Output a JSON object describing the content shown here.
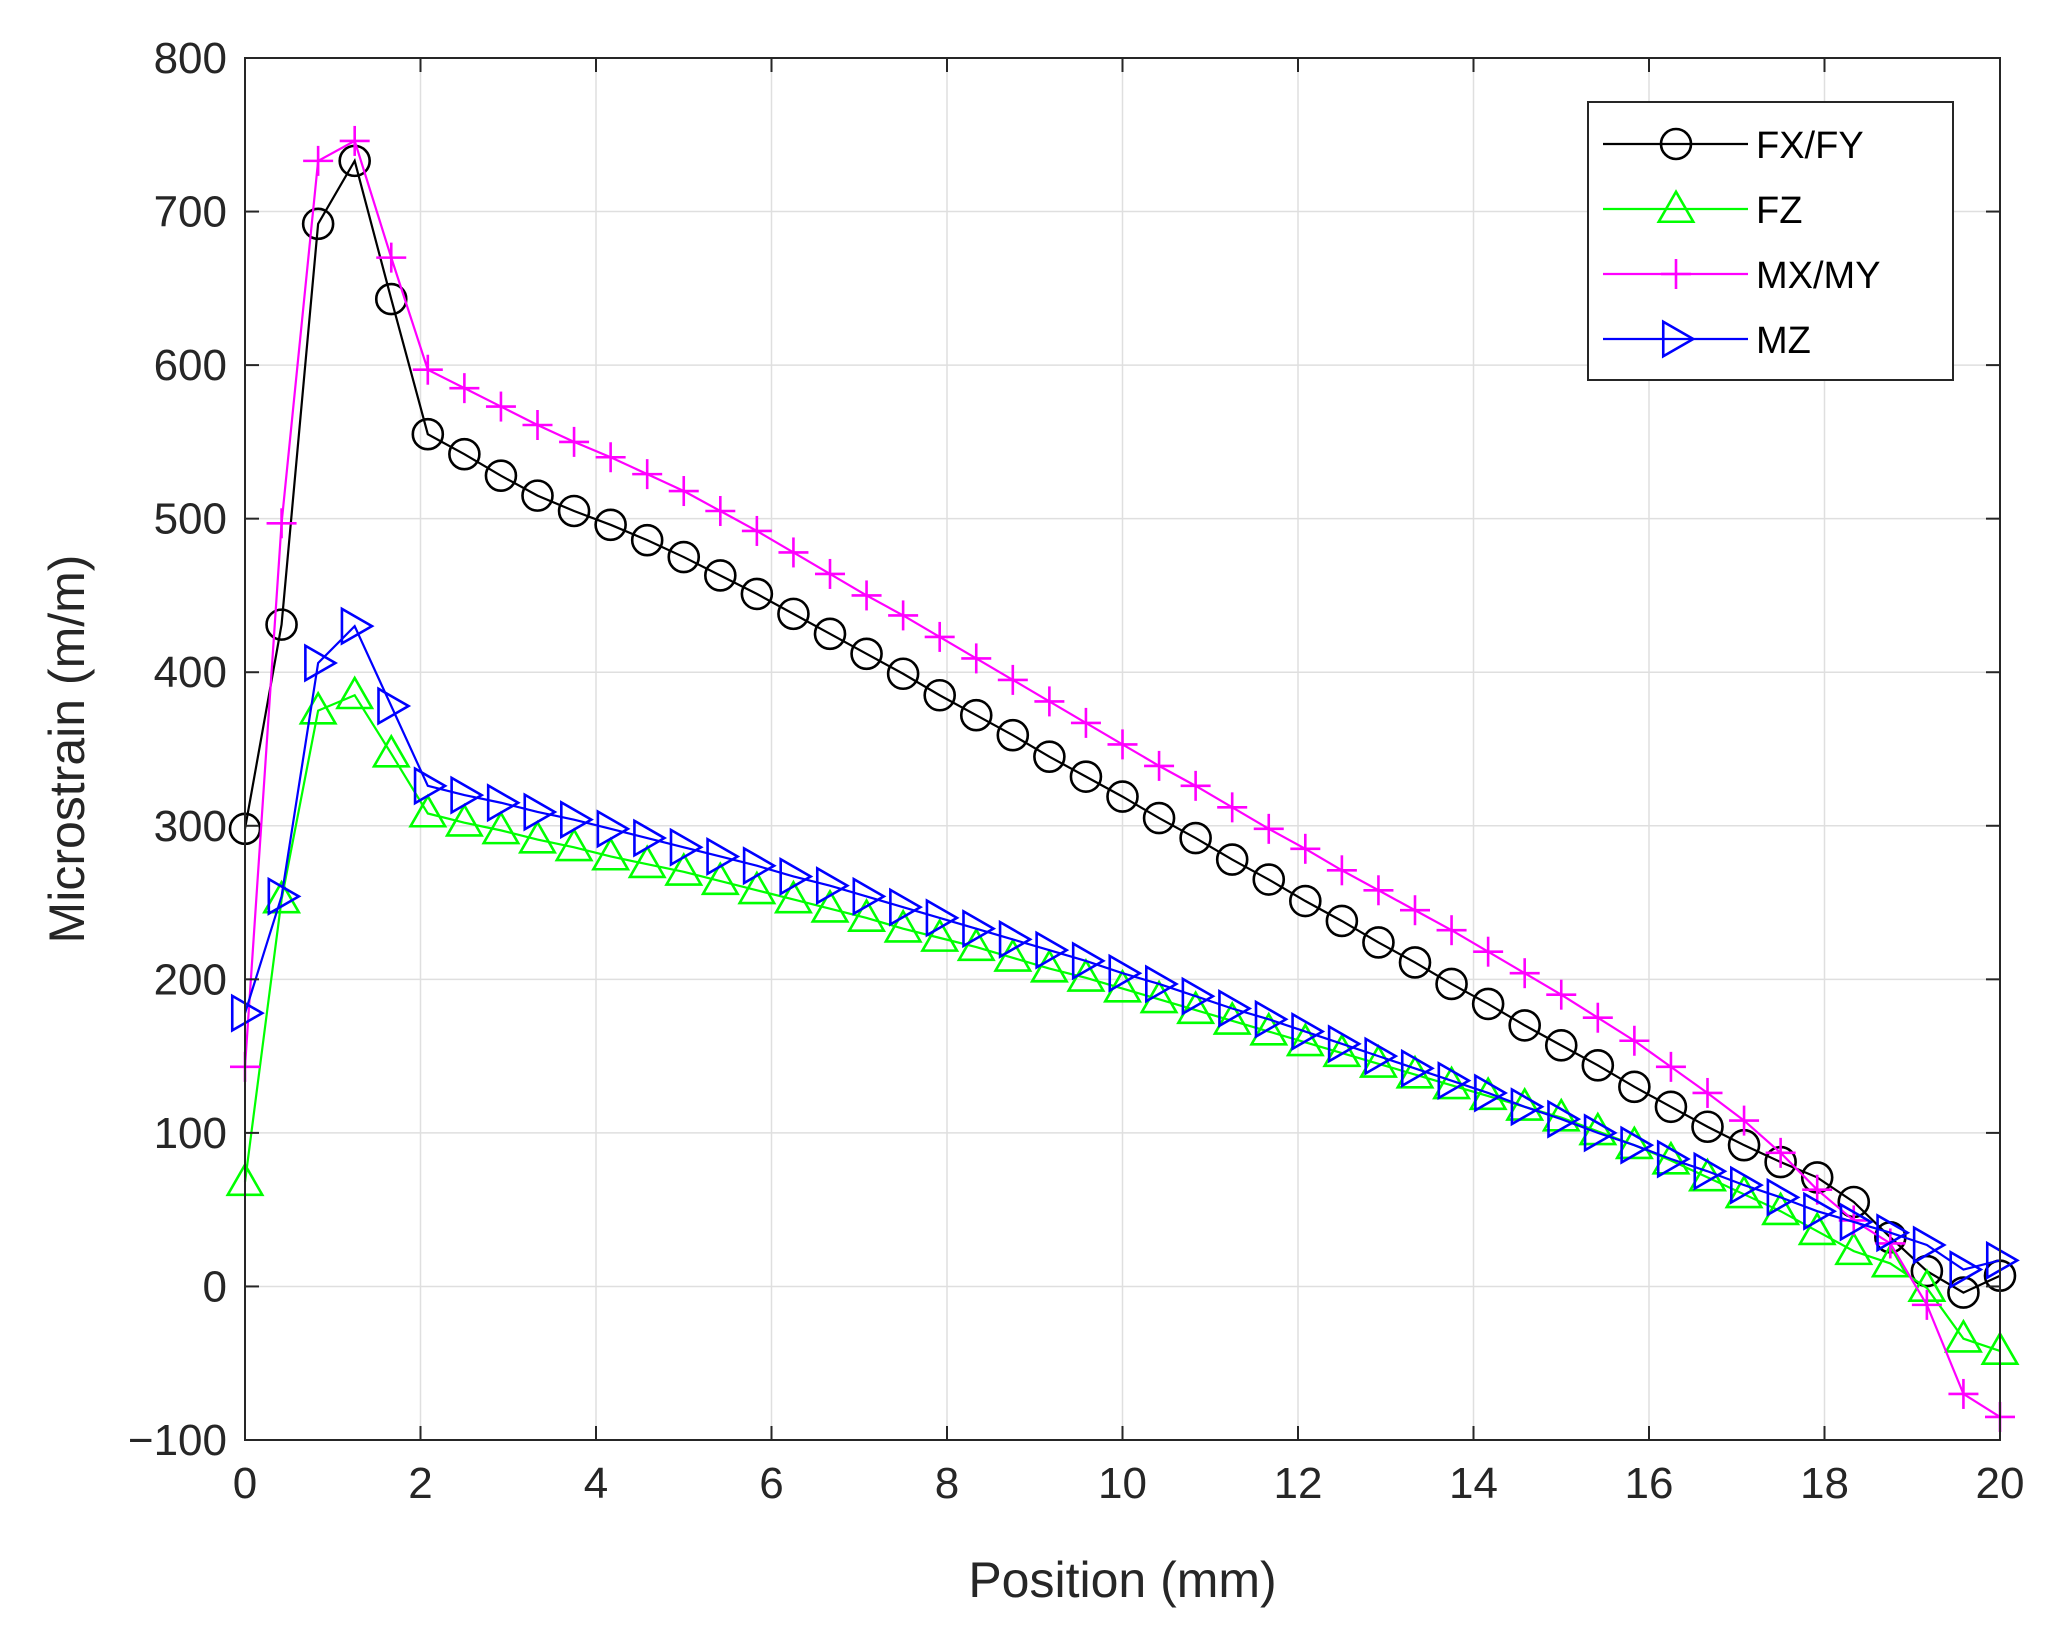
{
  "chart_data": {
    "type": "line",
    "title": "",
    "xlabel": "Position (mm)",
    "ylabel": "Microstrain (m/m)",
    "xlim": [
      0,
      20
    ],
    "ylim": [
      -100,
      800
    ],
    "xticks": [
      0,
      2,
      4,
      6,
      8,
      10,
      12,
      14,
      16,
      18,
      20
    ],
    "yticks": [
      -100,
      0,
      100,
      200,
      300,
      400,
      500,
      600,
      700,
      800
    ],
    "xtick_labels": [
      "0",
      "2",
      "4",
      "6",
      "8",
      "10",
      "12",
      "14",
      "16",
      "18",
      "20"
    ],
    "ytick_labels": [
      "−100",
      "0",
      "100",
      "200",
      "300",
      "400",
      "500",
      "600",
      "700",
      "800"
    ],
    "grid": true,
    "legend_position": "top-right",
    "x": [
      0,
      0.4167,
      0.8333,
      1.25,
      1.6667,
      2.0833,
      2.5,
      2.9167,
      3.3333,
      3.75,
      4.1667,
      4.5833,
      5.0,
      5.4167,
      5.8333,
      6.25,
      6.6667,
      7.0833,
      7.5,
      7.9167,
      8.3333,
      8.75,
      9.1667,
      9.5833,
      10.0,
      10.4167,
      10.8333,
      11.25,
      11.6667,
      12.0833,
      12.5,
      12.9167,
      13.3333,
      13.75,
      14.1667,
      14.5833,
      15.0,
      15.4167,
      15.8333,
      16.25,
      16.6667,
      17.0833,
      17.5,
      17.9167,
      18.3333,
      18.75,
      19.1667,
      19.5833,
      20.0
    ],
    "series": [
      {
        "name": "FX/FY",
        "color": "#000000",
        "marker": "circle",
        "values": [
          298,
          431,
          692,
          733,
          643,
          555,
          542,
          528,
          515,
          505,
          496,
          486,
          475,
          463,
          451,
          438,
          425,
          412,
          399,
          385,
          372,
          359,
          345,
          332,
          319,
          305,
          292,
          278,
          265,
          251,
          238,
          224,
          211,
          197,
          184,
          170,
          157,
          144,
          130,
          117,
          104,
          92,
          81,
          71,
          55,
          32,
          10,
          -4,
          7
        ]
      },
      {
        "name": "FZ",
        "color": "#00ff00",
        "marker": "triangle-up",
        "values": [
          68,
          252,
          375,
          385,
          347,
          308,
          302,
          297,
          291,
          286,
          280,
          275,
          270,
          264,
          258,
          252,
          246,
          240,
          233,
          227,
          221,
          214,
          207,
          201,
          194,
          187,
          180,
          173,
          166,
          159,
          152,
          145,
          138,
          131,
          124,
          117,
          110,
          101,
          92,
          82,
          71,
          60,
          49,
          36,
          23,
          15,
          -1,
          -34,
          -42
        ]
      },
      {
        "name": "MX/MY",
        "color": "#ff00ff",
        "marker": "plus",
        "values": [
          143,
          497,
          733,
          746,
          670,
          597,
          585,
          573,
          561,
          550,
          540,
          529,
          518,
          505,
          492,
          478,
          464,
          450,
          437,
          423,
          409,
          395,
          381,
          367,
          353,
          339,
          326,
          312,
          298,
          285,
          271,
          258,
          245,
          232,
          218,
          204,
          190,
          175,
          160,
          143,
          126,
          108,
          87,
          63,
          43,
          28,
          -12,
          -70,
          -85
        ]
      },
      {
        "name": "MZ",
        "color": "#0000ff",
        "marker": "triangle-right",
        "values": [
          178,
          254,
          406,
          430,
          378,
          326,
          320,
          315,
          309,
          304,
          298,
          292,
          286,
          280,
          274,
          267,
          261,
          254,
          247,
          240,
          233,
          226,
          219,
          212,
          204,
          197,
          189,
          181,
          174,
          166,
          158,
          150,
          142,
          134,
          126,
          117,
          109,
          100,
          92,
          83,
          75,
          66,
          58,
          49,
          42,
          35,
          27,
          11,
          17
        ]
      }
    ]
  }
}
